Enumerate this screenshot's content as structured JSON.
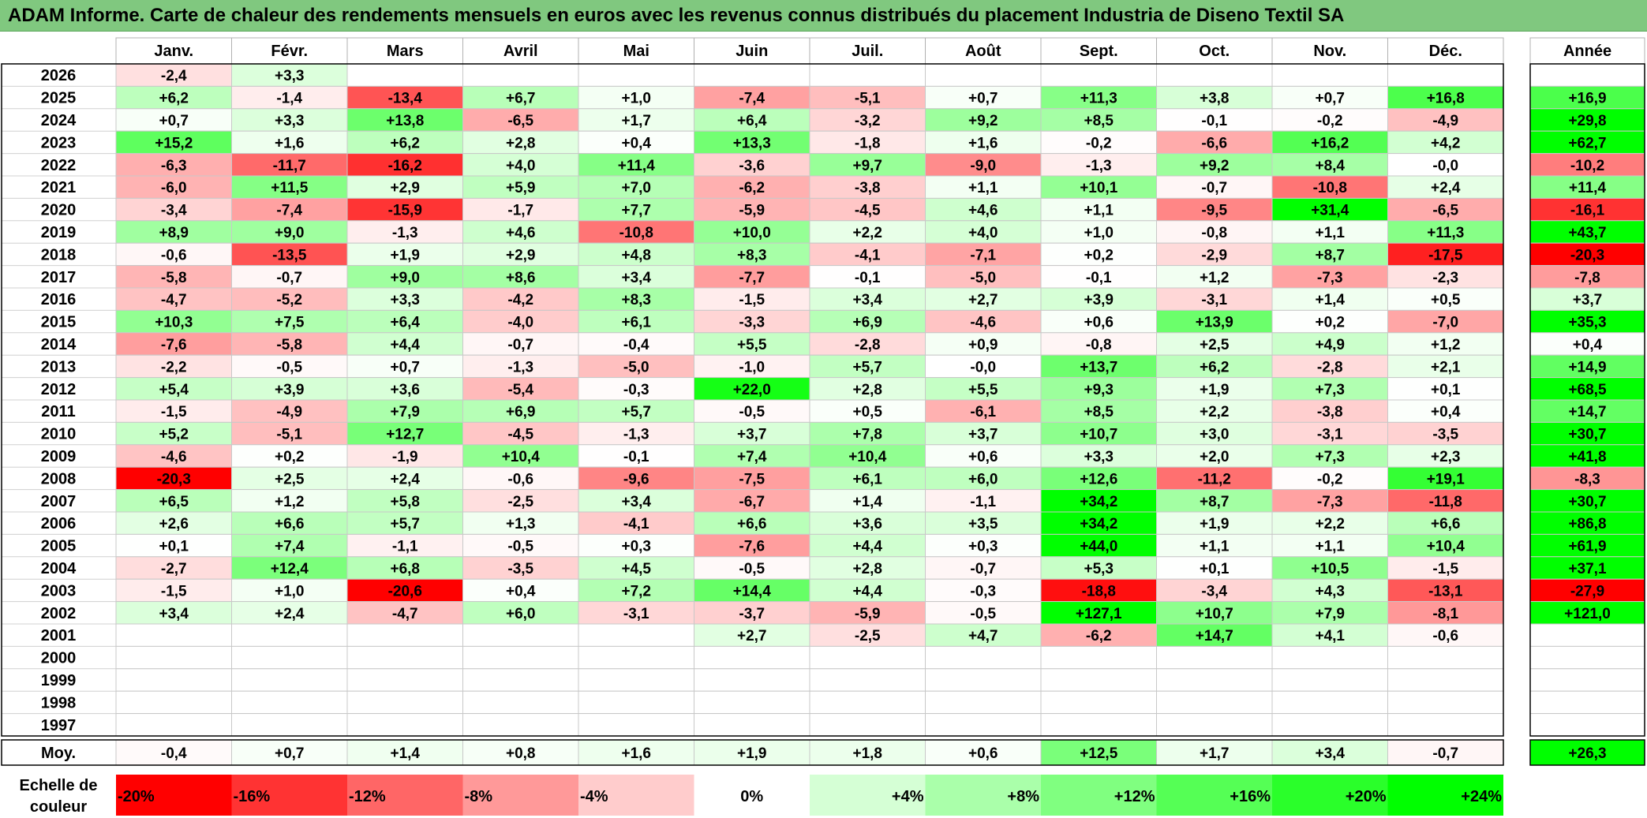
{
  "title": "ADAM Informe. Carte de chaleur des rendements mensuels en euros avec les revenus connus distribués du placement Industria de Diseno Textil SA",
  "colors": {
    "title_bg": "#80c87f",
    "max_red": "#ff0000",
    "max_green": "#00ff00",
    "neutral": "#ffffff"
  },
  "chart_data": {
    "type": "heatmap",
    "title": "ADAM Informe. Carte de chaleur des rendements mensuels en euros avec les revenus connus distribués du placement Industria de Diseno Textil SA",
    "months": [
      "Janv.",
      "Févr.",
      "Mars",
      "Avril",
      "Mai",
      "Juin",
      "Juil.",
      "Août",
      "Sept.",
      "Oct.",
      "Nov.",
      "Déc."
    ],
    "year_header": "Année",
    "rows": [
      {
        "year": "2026",
        "values": [
          "-2,4",
          "+3,3",
          "",
          "",
          "",
          "",
          "",
          "",
          "",
          "",
          "",
          ""
        ],
        "annual": ""
      },
      {
        "year": "2025",
        "values": [
          "+6,2",
          "-1,4",
          "-13,4",
          "+6,7",
          "+1,0",
          "-7,4",
          "-5,1",
          "+0,7",
          "+11,3",
          "+3,8",
          "+0,7",
          "+16,8"
        ],
        "annual": "+16,9"
      },
      {
        "year": "2024",
        "values": [
          "+0,7",
          "+3,3",
          "+13,8",
          "-6,5",
          "+1,7",
          "+6,4",
          "-3,2",
          "+9,2",
          "+8,5",
          "-0,1",
          "-0,2",
          "-4,9"
        ],
        "annual": "+29,8"
      },
      {
        "year": "2023",
        "values": [
          "+15,2",
          "+1,6",
          "+6,2",
          "+2,8",
          "+0,4",
          "+13,3",
          "-1,8",
          "+1,6",
          "-0,2",
          "-6,6",
          "+16,2",
          "+4,2"
        ],
        "annual": "+62,7"
      },
      {
        "year": "2022",
        "values": [
          "-6,3",
          "-11,7",
          "-16,2",
          "+4,0",
          "+11,4",
          "-3,6",
          "+9,7",
          "-9,0",
          "-1,3",
          "+9,2",
          "+8,4",
          "-0,0"
        ],
        "annual": "-10,2"
      },
      {
        "year": "2021",
        "values": [
          "-6,0",
          "+11,5",
          "+2,9",
          "+5,9",
          "+7,0",
          "-6,2",
          "-3,8",
          "+1,1",
          "+10,1",
          "-0,7",
          "-10,8",
          "+2,4"
        ],
        "annual": "+11,4"
      },
      {
        "year": "2020",
        "values": [
          "-3,4",
          "-7,4",
          "-15,9",
          "-1,7",
          "+7,7",
          "-5,9",
          "-4,5",
          "+4,6",
          "+1,1",
          "-9,5",
          "+31,4",
          "-6,5"
        ],
        "annual": "-16,1"
      },
      {
        "year": "2019",
        "values": [
          "+8,9",
          "+9,0",
          "-1,3",
          "+4,6",
          "-10,8",
          "+10,0",
          "+2,2",
          "+4,0",
          "+1,0",
          "-0,8",
          "+1,1",
          "+11,3"
        ],
        "annual": "+43,7"
      },
      {
        "year": "2018",
        "values": [
          "-0,6",
          "-13,5",
          "+1,9",
          "+2,9",
          "+4,8",
          "+8,3",
          "-4,1",
          "-7,1",
          "+0,2",
          "-2,9",
          "+8,7",
          "-17,5"
        ],
        "annual": "-20,3"
      },
      {
        "year": "2017",
        "values": [
          "-5,8",
          "-0,7",
          "+9,0",
          "+8,6",
          "+3,4",
          "-7,7",
          "-0,1",
          "-5,0",
          "-0,1",
          "+1,2",
          "-7,3",
          "-2,3"
        ],
        "annual": "-7,8"
      },
      {
        "year": "2016",
        "values": [
          "-4,7",
          "-5,2",
          "+3,3",
          "-4,2",
          "+8,3",
          "-1,5",
          "+3,4",
          "+2,7",
          "+3,9",
          "-3,1",
          "+1,4",
          "+0,5"
        ],
        "annual": "+3,7"
      },
      {
        "year": "2015",
        "values": [
          "+10,3",
          "+7,5",
          "+6,4",
          "-4,0",
          "+6,1",
          "-3,3",
          "+6,9",
          "-4,6",
          "+0,6",
          "+13,9",
          "+0,2",
          "-7,0"
        ],
        "annual": "+35,3"
      },
      {
        "year": "2014",
        "values": [
          "-7,6",
          "-5,8",
          "+4,4",
          "-0,7",
          "-0,4",
          "+5,5",
          "-2,8",
          "+0,9",
          "-0,8",
          "+2,5",
          "+4,9",
          "+1,2"
        ],
        "annual": "+0,4"
      },
      {
        "year": "2013",
        "values": [
          "-2,2",
          "-0,5",
          "+0,7",
          "-1,3",
          "-5,0",
          "-1,0",
          "+5,7",
          "-0,0",
          "+13,7",
          "+6,2",
          "-2,8",
          "+2,1"
        ],
        "annual": "+14,9"
      },
      {
        "year": "2012",
        "values": [
          "+5,4",
          "+3,9",
          "+3,6",
          "-5,4",
          "-0,3",
          "+22,0",
          "+2,8",
          "+5,5",
          "+9,3",
          "+1,9",
          "+7,3",
          "+0,1"
        ],
        "annual": "+68,5"
      },
      {
        "year": "2011",
        "values": [
          "-1,5",
          "-4,9",
          "+7,9",
          "+6,9",
          "+5,7",
          "-0,5",
          "+0,5",
          "-6,1",
          "+8,5",
          "+2,2",
          "-3,8",
          "+0,4"
        ],
        "annual": "+14,7"
      },
      {
        "year": "2010",
        "values": [
          "+5,2",
          "-5,1",
          "+12,7",
          "-4,5",
          "-1,3",
          "+3,7",
          "+7,8",
          "+3,7",
          "+10,7",
          "+3,0",
          "-3,1",
          "-3,5"
        ],
        "annual": "+30,7"
      },
      {
        "year": "2009",
        "values": [
          "-4,6",
          "+0,2",
          "-1,9",
          "+10,4",
          "-0,1",
          "+7,4",
          "+10,4",
          "+0,6",
          "+3,3",
          "+2,0",
          "+7,3",
          "+2,3"
        ],
        "annual": "+41,8"
      },
      {
        "year": "2008",
        "values": [
          "-20,3",
          "+2,5",
          "+2,4",
          "-0,6",
          "-9,6",
          "-7,5",
          "+6,1",
          "+6,0",
          "+12,6",
          "-11,2",
          "-0,2",
          "+19,1"
        ],
        "annual": "-8,3"
      },
      {
        "year": "2007",
        "values": [
          "+6,5",
          "+1,2",
          "+5,8",
          "-2,5",
          "+3,4",
          "-6,7",
          "+1,4",
          "-1,1",
          "+34,2",
          "+8,7",
          "-7,3",
          "-11,8"
        ],
        "annual": "+30,7"
      },
      {
        "year": "2006",
        "values": [
          "+2,6",
          "+6,6",
          "+5,7",
          "+1,3",
          "-4,1",
          "+6,6",
          "+3,6",
          "+3,5",
          "+34,2",
          "+1,9",
          "+2,2",
          "+6,6"
        ],
        "annual": "+86,8"
      },
      {
        "year": "2005",
        "values": [
          "+0,1",
          "+7,4",
          "-1,1",
          "-0,5",
          "+0,3",
          "-7,6",
          "+4,4",
          "+0,3",
          "+44,0",
          "+1,1",
          "+1,1",
          "+10,4"
        ],
        "annual": "+61,9"
      },
      {
        "year": "2004",
        "values": [
          "-2,7",
          "+12,4",
          "+6,8",
          "-3,5",
          "+4,5",
          "-0,5",
          "+2,8",
          "-0,7",
          "+5,3",
          "+0,1",
          "+10,5",
          "-1,5"
        ],
        "annual": "+37,1"
      },
      {
        "year": "2003",
        "values": [
          "-1,5",
          "+1,0",
          "-20,6",
          "+0,4",
          "+7,2",
          "+14,4",
          "+4,4",
          "-0,3",
          "-18,8",
          "-3,4",
          "+4,3",
          "-13,1"
        ],
        "annual": "-27,9"
      },
      {
        "year": "2002",
        "values": [
          "+3,4",
          "+2,4",
          "-4,7",
          "+6,0",
          "-3,1",
          "-3,7",
          "-5,9",
          "-0,5",
          "+127,1",
          "+10,7",
          "+7,9",
          "-8,1"
        ],
        "annual": "+121,0"
      },
      {
        "year": "2001",
        "values": [
          "",
          "",
          "",
          "",
          "",
          "+2,7",
          "-2,5",
          "+4,7",
          "-6,2",
          "+14,7",
          "+4,1",
          "-0,6"
        ],
        "annual": ""
      },
      {
        "year": "2000",
        "values": [
          "",
          "",
          "",
          "",
          "",
          "",
          "",
          "",
          "",
          "",
          "",
          ""
        ],
        "annual": ""
      },
      {
        "year": "1999",
        "values": [
          "",
          "",
          "",
          "",
          "",
          "",
          "",
          "",
          "",
          "",
          "",
          ""
        ],
        "annual": ""
      },
      {
        "year": "1998",
        "values": [
          "",
          "",
          "",
          "",
          "",
          "",
          "",
          "",
          "",
          "",
          "",
          ""
        ],
        "annual": ""
      },
      {
        "year": "1997",
        "values": [
          "",
          "",
          "",
          "",
          "",
          "",
          "",
          "",
          "",
          "",
          "",
          ""
        ],
        "annual": ""
      }
    ],
    "average": {
      "label": "Moy.",
      "values": [
        "-0,4",
        "+0,7",
        "+1,4",
        "+0,8",
        "+1,6",
        "+1,9",
        "+1,8",
        "+0,6",
        "+12,5",
        "+1,7",
        "+3,4",
        "-0,7"
      ],
      "annual": "+26,3"
    },
    "scale": {
      "label_line1": "Echelle de",
      "label_line2": "couleur",
      "stops": [
        "-20%",
        "-16%",
        "-12%",
        "-8%",
        "-4%",
        "0%",
        "+4%",
        "+8%",
        "+12%",
        "+16%",
        "+20%",
        "+24%"
      ],
      "values": [
        -20,
        -16,
        -12,
        -8,
        -4,
        0,
        4,
        8,
        12,
        16,
        20,
        24
      ]
    },
    "color_range": {
      "min": -20,
      "max": 24
    }
  }
}
